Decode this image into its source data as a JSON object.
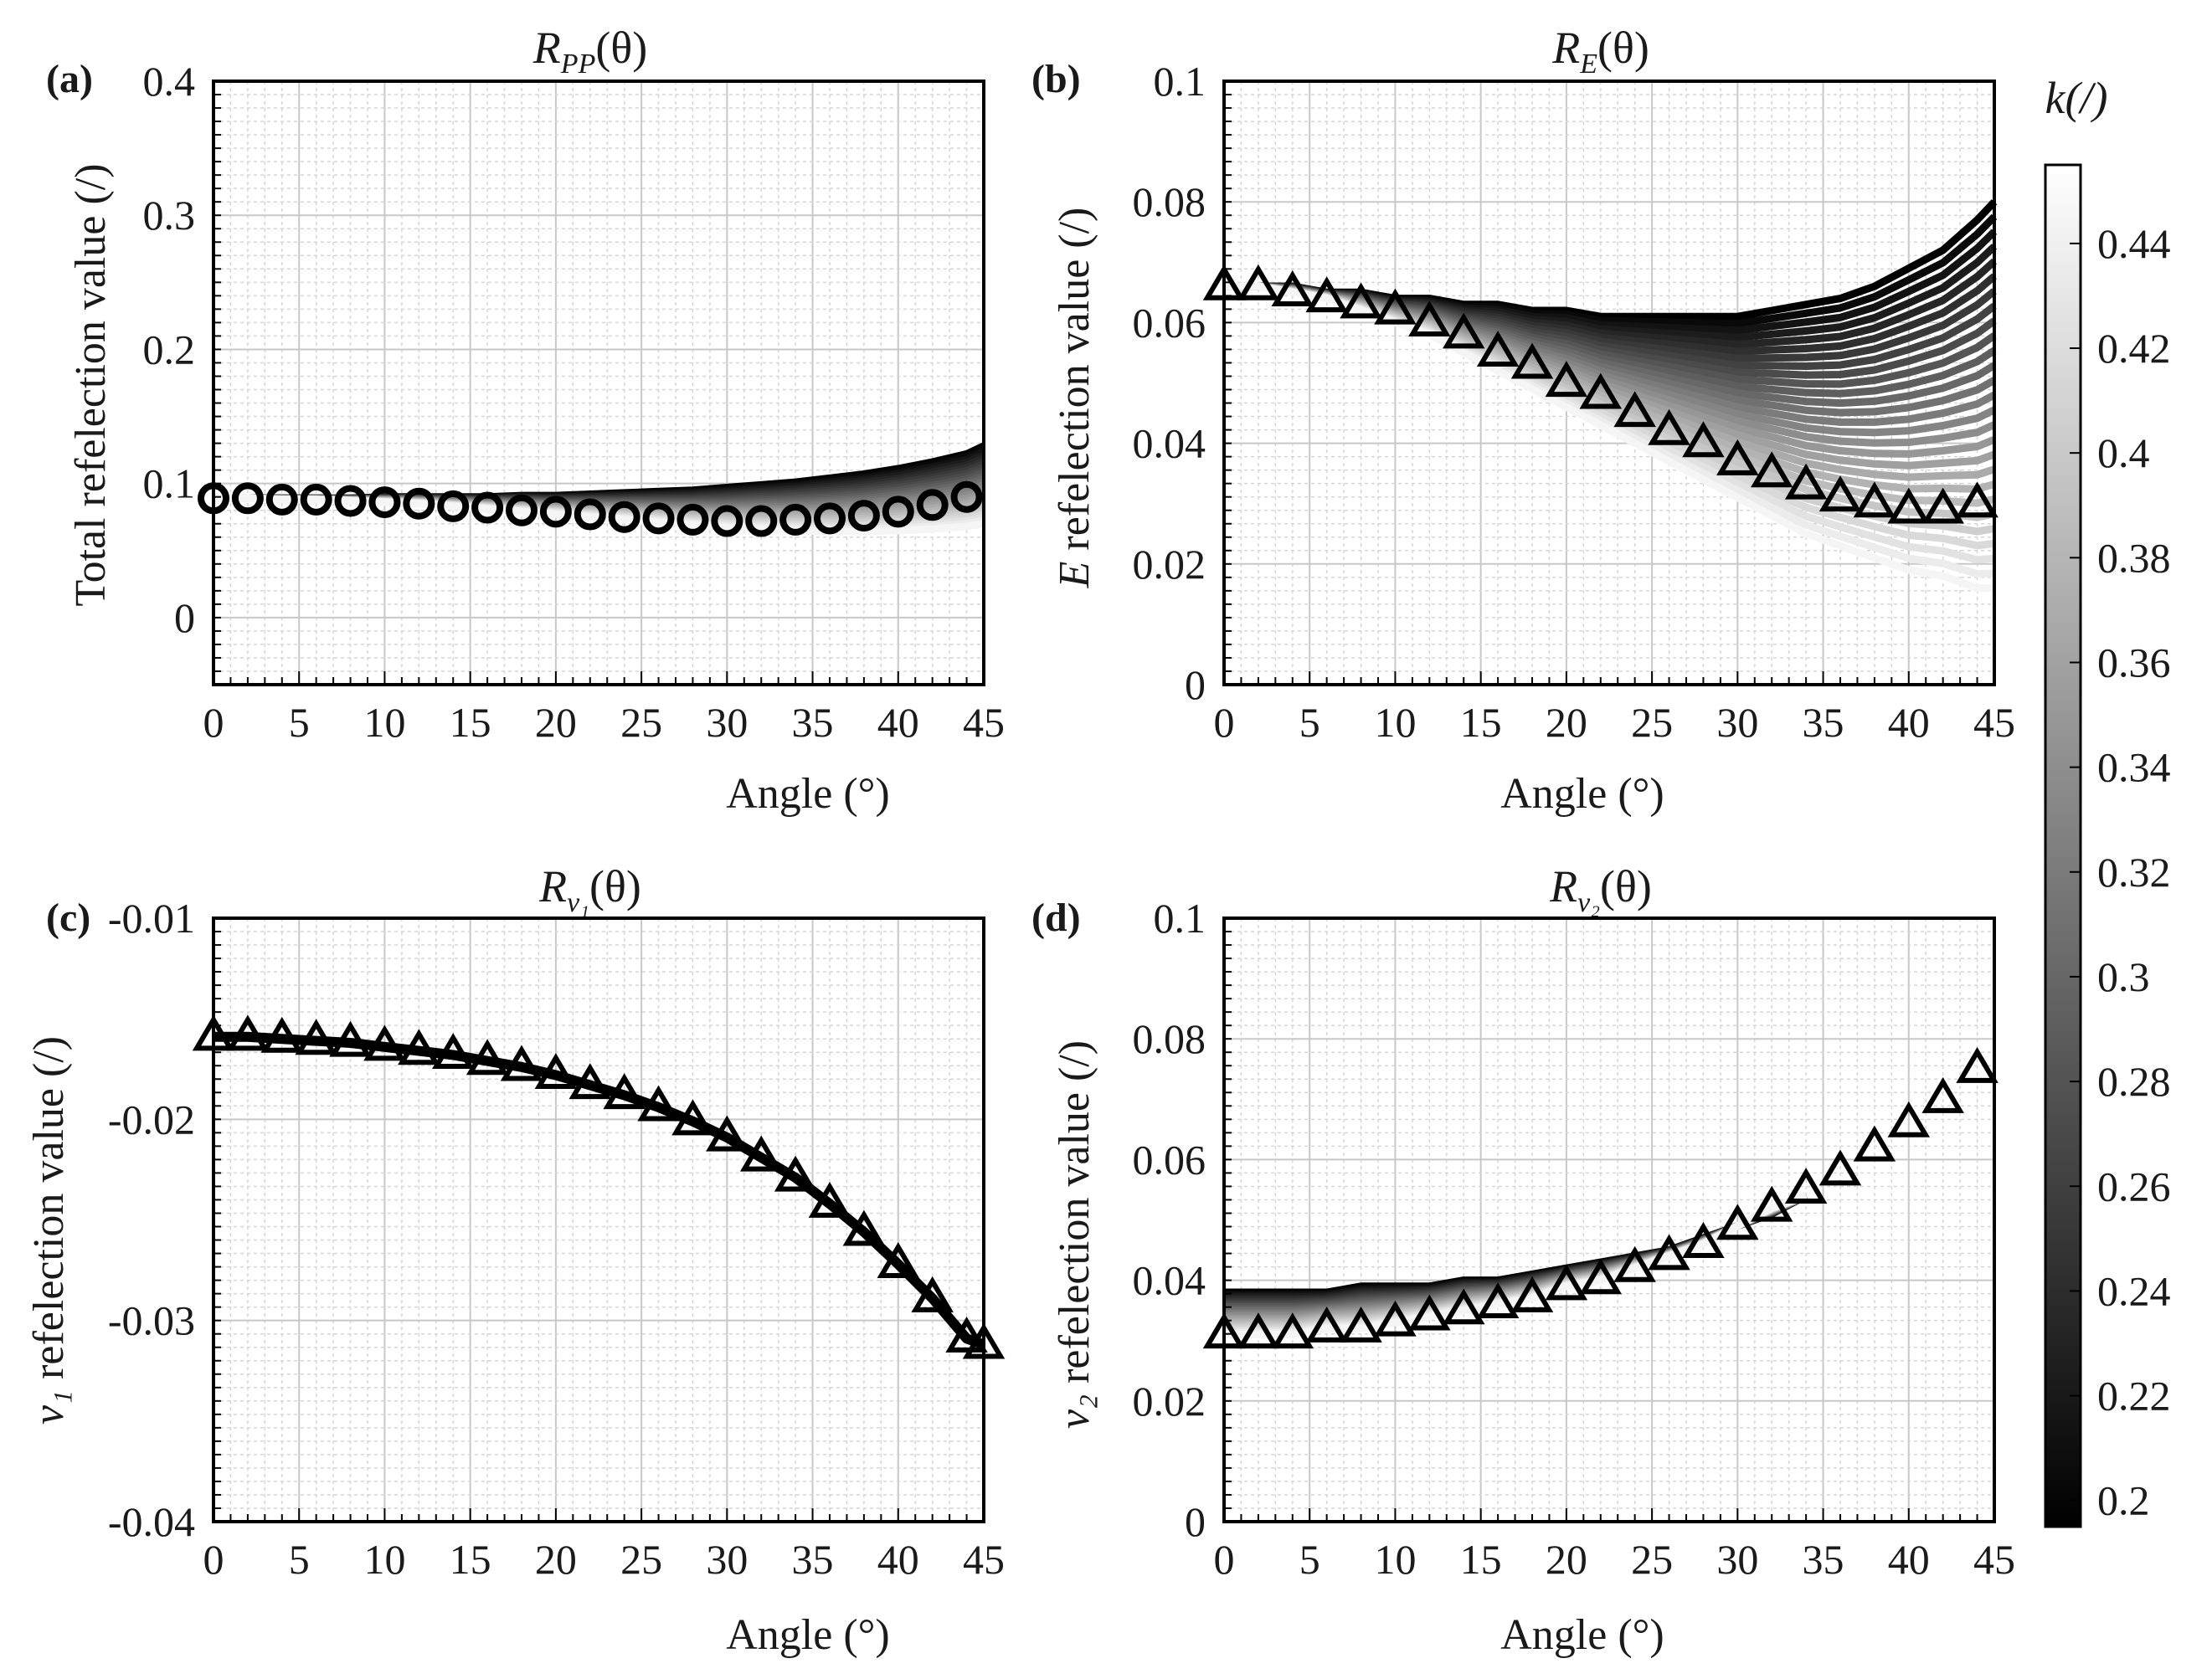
{
  "figure": {
    "colorbar": {
      "label": "k(/)",
      "range": [
        0.195,
        0.455
      ],
      "ticks": [
        "0.2",
        "0.22",
        "0.24",
        "0.26",
        "0.28",
        "0.3",
        "0.32",
        "0.34",
        "0.36",
        "0.38",
        "0.4",
        "0.42",
        "0.44"
      ],
      "dark_color": "#000000",
      "light_color": "#ffffff"
    }
  },
  "chart_data": [
    {
      "id": "a",
      "type": "line",
      "panel_tag": "(a)",
      "title": "R_PP(θ)",
      "title_main": "R",
      "title_sub": "PP",
      "title_tail": "(θ)",
      "xlabel": "Angle (°)",
      "ylabel": "Total refelection value (/)",
      "xlim": [
        0,
        45
      ],
      "ylim": [
        -0.05,
        0.4
      ],
      "xticks": [
        "0",
        "5",
        "10",
        "15",
        "20",
        "25",
        "30",
        "35",
        "40",
        "45"
      ],
      "yticks": [
        {
          "v": 0,
          "t": "0"
        },
        {
          "v": 0.1,
          "t": "0.1"
        },
        {
          "v": 0.2,
          "t": "0.2"
        },
        {
          "v": 0.3,
          "t": "0.3"
        },
        {
          "v": 0.4,
          "t": "0.4"
        }
      ],
      "grid": true,
      "marker": "circle",
      "series_count": 27,
      "k_range": [
        0.195,
        0.455
      ],
      "x": [
        0,
        2,
        4,
        6,
        8,
        10,
        12,
        14,
        16,
        18,
        20,
        22,
        24,
        26,
        28,
        30,
        32,
        34,
        36,
        38,
        40,
        42,
        44
      ],
      "markers_y": [
        0.089,
        0.089,
        0.088,
        0.088,
        0.087,
        0.086,
        0.085,
        0.083,
        0.082,
        0.08,
        0.079,
        0.077,
        0.075,
        0.074,
        0.073,
        0.072,
        0.072,
        0.073,
        0.074,
        0.076,
        0.079,
        0.084,
        0.09
      ],
      "dark_curve_y": [
        0.089,
        0.089,
        0.089,
        0.089,
        0.089,
        0.09,
        0.09,
        0.09,
        0.09,
        0.091,
        0.091,
        0.092,
        0.093,
        0.094,
        0.095,
        0.097,
        0.099,
        0.101,
        0.104,
        0.107,
        0.111,
        0.116,
        0.122,
        0.128
      ],
      "light_curve_y": [
        0.089,
        0.089,
        0.088,
        0.088,
        0.087,
        0.086,
        0.085,
        0.083,
        0.081,
        0.079,
        0.077,
        0.075,
        0.073,
        0.071,
        0.069,
        0.067,
        0.066,
        0.065,
        0.064,
        0.064,
        0.065,
        0.066,
        0.068,
        0.07
      ],
      "curve_x": [
        0,
        2,
        4,
        6,
        8,
        10,
        12,
        14,
        16,
        18,
        20,
        22,
        24,
        26,
        28,
        30,
        32,
        34,
        36,
        38,
        40,
        42,
        44,
        45
      ]
    },
    {
      "id": "b",
      "type": "line",
      "panel_tag": "(b)",
      "title": "R_E(θ)",
      "title_main": "R",
      "title_sub": "E",
      "title_tail": "(θ)",
      "xlabel": "Angle (°)",
      "ylabel_italic": "E",
      "ylabel": "refelection value (/)",
      "xlim": [
        0,
        45
      ],
      "ylim": [
        0,
        0.1
      ],
      "xticks": [
        "0",
        "5",
        "10",
        "15",
        "20",
        "25",
        "30",
        "35",
        "40",
        "45"
      ],
      "yticks": [
        {
          "v": 0,
          "t": "0"
        },
        {
          "v": 0.02,
          "t": "0.02"
        },
        {
          "v": 0.04,
          "t": "0.04"
        },
        {
          "v": 0.06,
          "t": "0.06"
        },
        {
          "v": 0.08,
          "t": "0.08"
        },
        {
          "v": 0.1,
          "t": "0.1"
        }
      ],
      "grid": true,
      "marker": "triangle",
      "series_count": 27,
      "k_range": [
        0.195,
        0.455
      ],
      "x": [
        0,
        2,
        4,
        6,
        8,
        10,
        12,
        14,
        16,
        18,
        20,
        22,
        24,
        26,
        28,
        30,
        32,
        34,
        36,
        38,
        40,
        42,
        44
      ],
      "markers_y": [
        0.066,
        0.066,
        0.065,
        0.064,
        0.063,
        0.062,
        0.06,
        0.058,
        0.055,
        0.053,
        0.05,
        0.048,
        0.045,
        0.042,
        0.04,
        0.037,
        0.035,
        0.033,
        0.031,
        0.03,
        0.029,
        0.029,
        0.03
      ],
      "dark_curve_y": [
        0.066,
        0.066,
        0.066,
        0.065,
        0.065,
        0.064,
        0.064,
        0.063,
        0.063,
        0.062,
        0.062,
        0.061,
        0.061,
        0.061,
        0.061,
        0.061,
        0.062,
        0.063,
        0.064,
        0.066,
        0.069,
        0.072,
        0.077,
        0.08
      ],
      "light_curve_y": [
        0.066,
        0.066,
        0.065,
        0.064,
        0.062,
        0.06,
        0.058,
        0.055,
        0.052,
        0.049,
        0.046,
        0.043,
        0.04,
        0.037,
        0.034,
        0.031,
        0.028,
        0.025,
        0.023,
        0.021,
        0.019,
        0.018,
        0.016,
        0.016
      ],
      "curve_x": [
        0,
        2,
        4,
        6,
        8,
        10,
        12,
        14,
        16,
        18,
        20,
        22,
        24,
        26,
        28,
        30,
        32,
        34,
        36,
        38,
        40,
        42,
        44,
        45
      ]
    },
    {
      "id": "c",
      "type": "line",
      "panel_tag": "(c)",
      "title": "R_v1(θ)",
      "title_main": "R",
      "title_sub": "v₁",
      "title_tail": "(θ)",
      "xlabel": "Angle (°)",
      "ylabel_italic": "v₁",
      "ylabel": "refelection value (/)",
      "xlim": [
        0,
        45
      ],
      "ylim": [
        -0.04,
        -0.01
      ],
      "xticks": [
        "0",
        "5",
        "10",
        "15",
        "20",
        "25",
        "30",
        "35",
        "40",
        "45"
      ],
      "yticks": [
        {
          "v": -0.04,
          "t": "-0.04"
        },
        {
          "v": -0.03,
          "t": "-0.03"
        },
        {
          "v": -0.02,
          "t": "-0.02"
        },
        {
          "v": -0.01,
          "t": "-0.01"
        }
      ],
      "grid": true,
      "marker": "triangle",
      "series_count": 1,
      "x": [
        0,
        2,
        4,
        6,
        8,
        10,
        12,
        14,
        16,
        18,
        20,
        22,
        24,
        26,
        28,
        30,
        32,
        34,
        36,
        38,
        40,
        42,
        44,
        45
      ],
      "markers_y": [
        -0.0159,
        -0.0159,
        -0.016,
        -0.0161,
        -0.0162,
        -0.0164,
        -0.0166,
        -0.0168,
        -0.0171,
        -0.0174,
        -0.0178,
        -0.0183,
        -0.0188,
        -0.0194,
        -0.0201,
        -0.0209,
        -0.0219,
        -0.0229,
        -0.0242,
        -0.0256,
        -0.0272,
        -0.0289,
        -0.0309,
        -0.0312
      ]
    },
    {
      "id": "d",
      "type": "line",
      "panel_tag": "(d)",
      "title": "R_v2(θ)",
      "title_main": "R",
      "title_sub": "v₂",
      "title_tail": "(θ)",
      "xlabel": "Angle (°)",
      "ylabel_italic": "v₂",
      "ylabel": "refelection value (/)",
      "xlim": [
        0,
        45
      ],
      "ylim": [
        0,
        0.1
      ],
      "xticks": [
        "0",
        "5",
        "10",
        "15",
        "20",
        "25",
        "30",
        "35",
        "40",
        "45"
      ],
      "yticks": [
        {
          "v": 0,
          "t": "0"
        },
        {
          "v": 0.02,
          "t": "0.02"
        },
        {
          "v": 0.04,
          "t": "0.04"
        },
        {
          "v": 0.06,
          "t": "0.06"
        },
        {
          "v": 0.08,
          "t": "0.08"
        },
        {
          "v": 0.1,
          "t": "0.1"
        }
      ],
      "grid": true,
      "marker": "triangle",
      "series_count": 27,
      "k_range": [
        0.195,
        0.455
      ],
      "x": [
        0,
        2,
        4,
        6,
        8,
        10,
        12,
        14,
        16,
        18,
        20,
        22,
        24,
        26,
        28,
        30,
        32,
        34,
        36,
        38,
        40,
        42,
        44
      ],
      "markers_y": [
        0.031,
        0.031,
        0.031,
        0.032,
        0.032,
        0.033,
        0.034,
        0.035,
        0.036,
        0.037,
        0.039,
        0.04,
        0.042,
        0.044,
        0.046,
        0.049,
        0.052,
        0.055,
        0.058,
        0.062,
        0.066,
        0.07,
        0.075
      ],
      "dark_curve_y": [
        0.038,
        0.038,
        0.038,
        0.038,
        0.039,
        0.039,
        0.039,
        0.04,
        0.04,
        0.041,
        0.042,
        0.043,
        0.044,
        0.045,
        0.047,
        0.049,
        0.051,
        0.054
      ],
      "light_curve_y": [
        0.031,
        0.031,
        0.031,
        0.032,
        0.032,
        0.033,
        0.034,
        0.035,
        0.036,
        0.037,
        0.039,
        0.04,
        0.042,
        0.044,
        0.046,
        0.049,
        0.052,
        0.054
      ],
      "curve_x": [
        0,
        2,
        4,
        6,
        8,
        10,
        12,
        14,
        16,
        18,
        20,
        22,
        24,
        26,
        28,
        30,
        32,
        34
      ]
    }
  ]
}
